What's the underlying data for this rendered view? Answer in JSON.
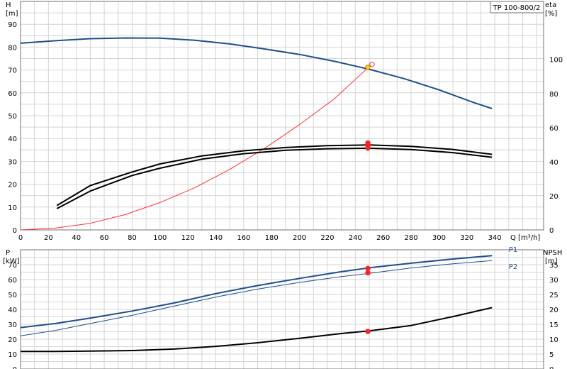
{
  "chart_data": {
    "type": "line",
    "title": "TP 100-800/2",
    "top": {
      "x_label": "Q [m³/h]",
      "x_ticks": [
        0,
        20,
        40,
        60,
        80,
        100,
        120,
        140,
        160,
        180,
        200,
        220,
        240,
        260,
        280,
        300,
        320,
        340
      ],
      "xlim": [
        0,
        375
      ],
      "y_left_label_lines": [
        "H",
        "[m]"
      ],
      "y_left_ticks": [
        0,
        10,
        20,
        30,
        40,
        50,
        60,
        70,
        80,
        90
      ],
      "ylim_left": [
        0,
        100
      ],
      "y_right_label_lines": [
        "eta",
        "[%]"
      ],
      "y_right_ticks": [
        0,
        20,
        40,
        60,
        80,
        100
      ],
      "ylim_right": [
        0,
        134
      ],
      "series": [
        {
          "axis": "left",
          "color": "#1f4e8c",
          "width": 2,
          "x": [
            0,
            25,
            50,
            75,
            100,
            125,
            150,
            175,
            200,
            225,
            250,
            275,
            300,
            325,
            338
          ],
          "y": [
            81.7,
            82.8,
            83.7,
            84.0,
            83.9,
            83.0,
            81.4,
            79.2,
            76.8,
            73.8,
            70.3,
            66.2,
            61.3,
            55.7,
            53.1
          ]
        },
        {
          "axis": "left",
          "color": "#ff3030",
          "width": 1,
          "x": [
            0,
            25,
            50,
            75,
            100,
            125,
            150,
            175,
            200,
            225,
            250
          ],
          "y": [
            0,
            0.8,
            2.9,
            6.7,
            12.0,
            18.5,
            26.5,
            35.7,
            46.1,
            57.4,
            71.5
          ]
        },
        {
          "axis": "right",
          "color": "#000000",
          "width": 2,
          "x": [
            26,
            50,
            80,
            100,
            130,
            160,
            190,
            220,
            250,
            280,
            310,
            338
          ],
          "y": [
            14.3,
            26.0,
            34.0,
            38.7,
            43.4,
            46.4,
            48.3,
            49.4,
            49.8,
            49.0,
            47.2,
            44.3
          ]
        },
        {
          "axis": "right",
          "color": "#000000",
          "width": 2,
          "x": [
            26,
            50,
            80,
            100,
            130,
            160,
            190,
            220,
            250,
            280,
            310,
            338
          ],
          "y": [
            12.5,
            22.8,
            31.9,
            36.2,
            41.5,
            44.7,
            46.7,
            47.6,
            47.9,
            47.1,
            45.3,
            42.6
          ]
        }
      ],
      "points": [
        {
          "axis": "left",
          "x": 249,
          "y": 71.2,
          "color": "#ffd700",
          "stroke": "#c08000",
          "open": false
        },
        {
          "axis": "left",
          "x": 252,
          "y": 72.5,
          "color": "none",
          "stroke": "#ff3030",
          "open": true
        },
        {
          "axis": "right",
          "x": 249,
          "y": 51.0,
          "color": "#ff2020",
          "stroke": "#ff2020",
          "open": false
        },
        {
          "axis": "right",
          "x": 249,
          "y": 49.5,
          "color": "#ff2020",
          "stroke": "#ff2020",
          "open": false
        },
        {
          "axis": "right",
          "x": 249,
          "y": 48.0,
          "color": "#ff2020",
          "stroke": "#ff2020",
          "open": false
        }
      ]
    },
    "bottom": {
      "y_left_label_lines": [
        "P",
        "[kW]"
      ],
      "y_left_ticks": [
        0,
        10,
        20,
        30,
        40,
        50,
        60,
        70
      ],
      "ylim_left": [
        0,
        80
      ],
      "y_right_label_lines": [
        "NPSH",
        "[m]"
      ],
      "y_right_ticks": [
        0,
        5,
        10,
        15,
        20,
        25,
        30,
        35
      ],
      "ylim_right": [
        0,
        40
      ],
      "series": [
        {
          "axis": "left",
          "color": "#1f4e8c",
          "width": 2,
          "label": "P1",
          "x": [
            0,
            25,
            50,
            80,
            110,
            140,
            170,
            200,
            230,
            250,
            280,
            310,
            338
          ],
          "y": [
            27.8,
            30.5,
            34.2,
            38.9,
            44.3,
            50.6,
            56.0,
            60.8,
            65.3,
            67.9,
            71.0,
            73.8,
            76.1
          ]
        },
        {
          "axis": "left",
          "color": "#1f4e8c",
          "width": 1,
          "label": "P2",
          "x": [
            0,
            25,
            50,
            80,
            110,
            140,
            170,
            200,
            230,
            250,
            280,
            310,
            338
          ],
          "y": [
            22.3,
            25.9,
            30.5,
            36.0,
            42.2,
            48.3,
            53.6,
            58.1,
            62.0,
            64.2,
            67.8,
            70.6,
            72.7
          ]
        },
        {
          "axis": "right",
          "color": "#000000",
          "width": 2,
          "x": [
            0,
            25,
            50,
            80,
            110,
            140,
            170,
            200,
            230,
            250,
            280,
            310,
            338
          ],
          "y": [
            5.9,
            5.9,
            6.0,
            6.2,
            6.7,
            7.6,
            8.8,
            10.3,
            11.9,
            12.8,
            14.6,
            17.6,
            20.6
          ]
        }
      ],
      "points": [
        {
          "axis": "left",
          "x": 249,
          "y": 67.5,
          "color": "#ff2020",
          "stroke": "#ff2020",
          "open": false
        },
        {
          "axis": "left",
          "x": 249,
          "y": 64.5,
          "color": "#ff2020",
          "stroke": "#ff2020",
          "open": false
        },
        {
          "axis": "right",
          "x": 249,
          "y": 12.6,
          "color": "#ff2020",
          "stroke": "#ff2020",
          "open": false
        }
      ],
      "series_labels": [
        {
          "text": "P1",
          "x": 350,
          "y": 80.5
        },
        {
          "text": "P2",
          "x": 350,
          "y": 69.0
        }
      ]
    }
  }
}
